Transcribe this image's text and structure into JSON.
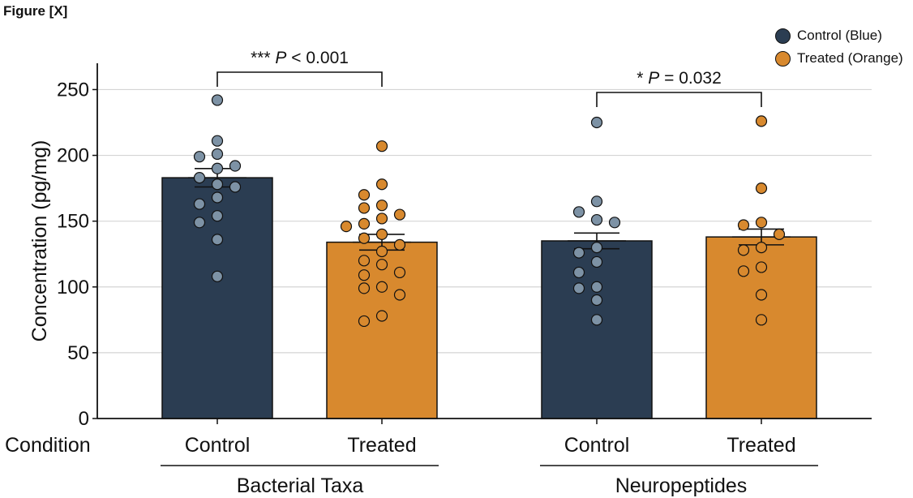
{
  "figure_label": "Figure [X]",
  "legend": [
    {
      "label": "Control (Blue)",
      "color": "#2b3d52"
    },
    {
      "label": "Treated (Orange)",
      "color": "#d8892e"
    }
  ],
  "chart_data": {
    "type": "bar",
    "ylabel": "Concentration (pg/mg)",
    "ylim": [
      0,
      270
    ],
    "yticks": [
      0,
      50,
      100,
      150,
      200,
      250
    ],
    "grid": true,
    "row_label": "Condition",
    "groups": [
      {
        "name": "Bacterial Taxa",
        "bars": [
          {
            "condition": "Control",
            "mean": 183,
            "sem": 7,
            "points": [
              242,
              211,
              201,
              199,
              192,
              190,
              183,
              178,
              176,
              168,
              163,
              154,
              149,
              136,
              108
            ]
          },
          {
            "condition": "Treated",
            "mean": 134,
            "sem": 6,
            "points": [
              207,
              178,
              170,
              162,
              160,
              155,
              152,
              148,
              146,
              140,
              137,
              132,
              127,
              120,
              117,
              111,
              109,
              100,
              99,
              94,
              78,
              74
            ]
          }
        ],
        "significance": "*** P < 0.001"
      },
      {
        "name": "Neuropeptides",
        "bars": [
          {
            "condition": "Control",
            "mean": 135,
            "sem": 6,
            "points": [
              225,
              165,
              157,
              151,
              149,
              130,
              126,
              119,
              111,
              100,
              99,
              90,
              75
            ]
          },
          {
            "condition": "Treated",
            "mean": 138,
            "sem": 6,
            "points": [
              226,
              175,
              149,
              147,
              140,
              130,
              128,
              115,
              112,
              94,
              75
            ]
          }
        ],
        "significance": "* P = 0.032"
      }
    ],
    "colors": {
      "control_bar": "#2b3d52",
      "treated_bar": "#d8892e",
      "control_point": "#7d92a5",
      "treated_point": "#d8892e"
    }
  }
}
